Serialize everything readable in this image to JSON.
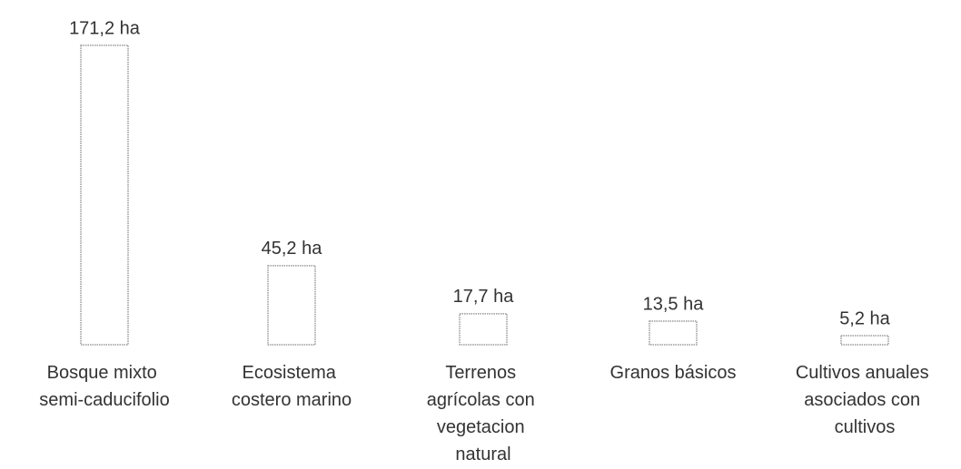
{
  "chart_data": {
    "type": "bar",
    "categories": [
      "Bosque mixto semi-caducifolio",
      "Ecosistema costero marino",
      "Terrenos agrícolas con vegetacion natural",
      "Granos básicos",
      "Cultivos anuales asociados con cultivos"
    ],
    "values": [
      171.2,
      45.2,
      17.7,
      13.5,
      5.2
    ],
    "value_labels": [
      "171,2 ha",
      "45,2 ha",
      "17,7 ha",
      "13,5 ha",
      "5,2 ha"
    ],
    "color": "#ffffff"
  }
}
